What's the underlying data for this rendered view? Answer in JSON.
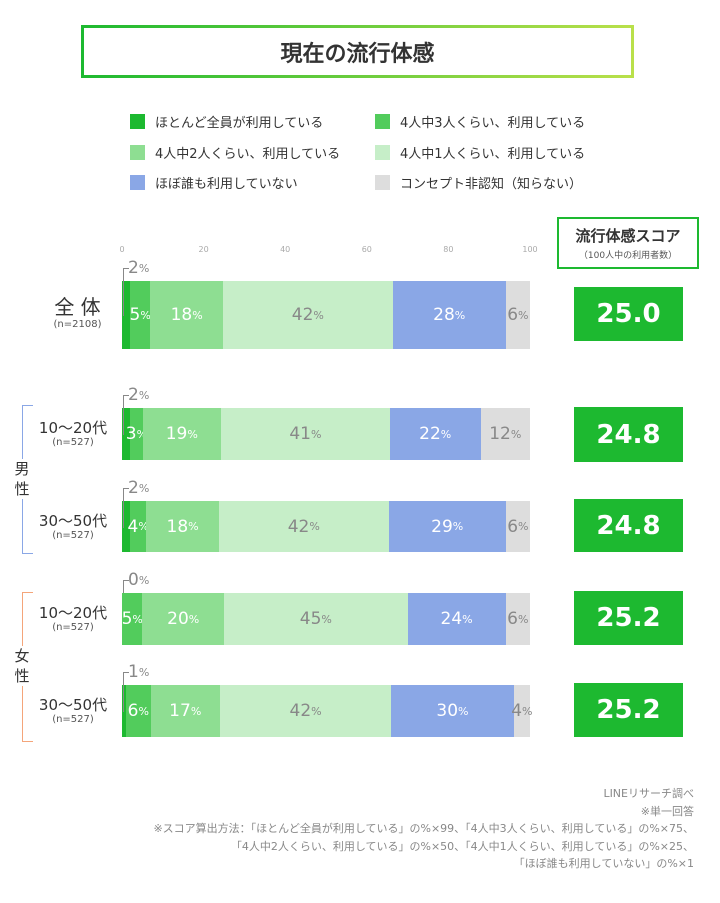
{
  "title": "現在の流行体感",
  "chart_data": {
    "type": "bar",
    "orientation": "horizontal",
    "stacked": true,
    "xlim": [
      0,
      100
    ],
    "xticks": [
      "0",
      "20",
      "40",
      "60",
      "80",
      "100"
    ],
    "legend_position": "top",
    "series": [
      {
        "name": "ほとんど全員が利用している",
        "color": "#1db930",
        "values": [
          2,
          2,
          2,
          0,
          1
        ]
      },
      {
        "name": "4人中3人くらい、利用している",
        "color": "#52cc5c",
        "values": [
          5,
          3,
          4,
          5,
          6
        ]
      },
      {
        "name": "4人中2人くらい、利用している",
        "color": "#8ede92",
        "values": [
          18,
          19,
          18,
          20,
          17
        ]
      },
      {
        "name": "4人中1人くらい、利用している",
        "color": "#c6eec8",
        "values": [
          42,
          41,
          42,
          45,
          42
        ]
      },
      {
        "name": "ほぼ誰も利用していない",
        "color": "#8aa7e6",
        "values": [
          28,
          22,
          29,
          24,
          30
        ]
      },
      {
        "name": "コンセプト非認知（知らない）",
        "color": "#dddddd",
        "values": [
          6,
          12,
          6,
          6,
          4
        ]
      }
    ],
    "categories": [
      {
        "label": "全 体",
        "n": "(n=2108)"
      },
      {
        "label": "10〜20代",
        "n": "(n=527)",
        "group": "男性"
      },
      {
        "label": "30〜50代",
        "n": "(n=527)",
        "group": "男性"
      },
      {
        "label": "10〜20代",
        "n": "(n=527)",
        "group": "女性"
      },
      {
        "label": "30〜50代",
        "n": "(n=527)",
        "group": "女性"
      }
    ],
    "groups": [
      {
        "label": "男\n性",
        "color": "#8aa7e6"
      },
      {
        "label": "女\n性",
        "color": "#f4a57a"
      }
    ],
    "score_title": "流行体感スコア",
    "score_sub": "（100人中の利用者数）",
    "scores": [
      "25.0",
      "24.8",
      "24.8",
      "25.2",
      "25.2"
    ],
    "percent_sign": "%"
  },
  "footer": [
    "LINEリサーチ調べ",
    "※単一回答",
    "※スコア算出方法：「ほとんど全員が利用している」の%×99、「4人中3人くらい、利用している」の%×75、",
    "「4人中2人くらい、利用している」の%×50、「4人中1人くらい、利用している」の%×25、",
    "「ほぼ誰も利用していない」の%×1"
  ]
}
